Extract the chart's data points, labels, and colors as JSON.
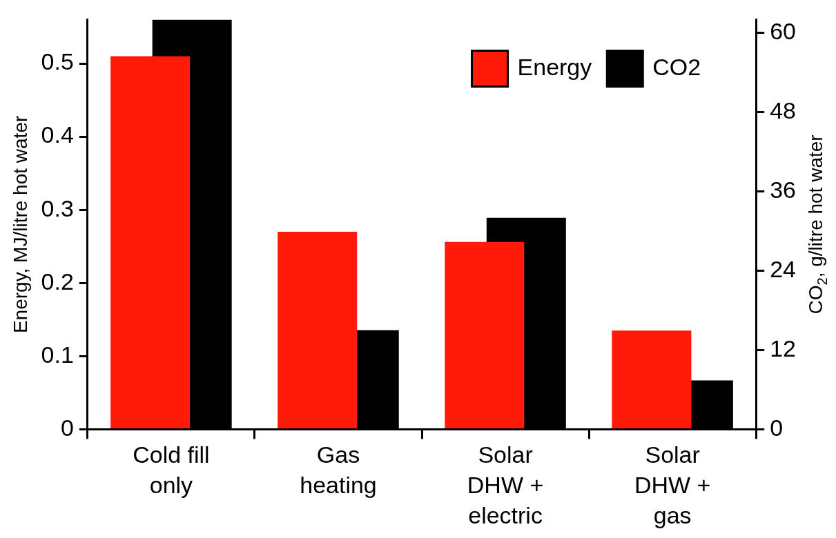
{
  "chart_data": {
    "type": "bar",
    "categories": [
      "Cold fill\nonly",
      "Gas\nheating",
      "Solar\nDHW +\nelectric",
      "Solar\nDHW +\ngas"
    ],
    "series": [
      {
        "name": "Energy",
        "color": "#ff1a0a",
        "values": [
          0.51,
          0.27,
          0.256,
          0.135
        ]
      },
      {
        "name": "CO2",
        "color": "#000000",
        "values": [
          62,
          15,
          32,
          7.4
        ],
        "axis": "y2"
      }
    ],
    "ylabel": "Energy, MJ/litre hot water",
    "y2label": "CO$_{2}$, g/litre hot water",
    "ylim": [
      0,
      0.56
    ],
    "yticks": [
      0,
      0.1,
      0.2,
      0.3,
      0.4,
      0.5
    ],
    "y2lim": [
      0,
      62
    ],
    "y2ticks": [
      0,
      12,
      24,
      36,
      48,
      60
    ],
    "legend": "top right",
    "grid": false
  }
}
